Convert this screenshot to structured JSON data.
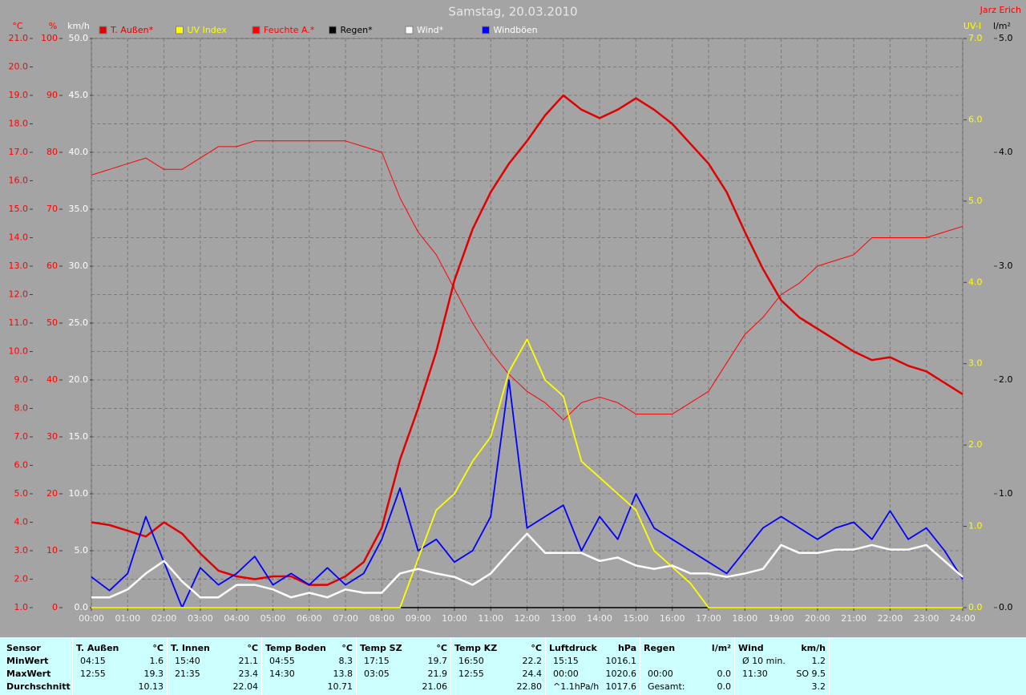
{
  "chart_data": {
    "type": "line",
    "title": "Samstag, 20.03.2010",
    "author": "Jarz Erich",
    "x": [
      0,
      0.5,
      1,
      1.5,
      2,
      2.5,
      3,
      3.5,
      4,
      4.5,
      5,
      5.5,
      6,
      6.5,
      7,
      7.5,
      8,
      8.5,
      9,
      9.5,
      10,
      10.5,
      11,
      11.5,
      12,
      12.5,
      13,
      13.5,
      14,
      14.5,
      15,
      15.5,
      16,
      16.5,
      17,
      17.5,
      18,
      18.5,
      19,
      19.5,
      20,
      20.5,
      21,
      21.5,
      22,
      22.5,
      23,
      23.5,
      24
    ],
    "xlim": [
      0,
      24
    ],
    "xticks": [
      {
        "value": 0,
        "label": "00:00"
      },
      {
        "value": 1,
        "label": "01:00"
      },
      {
        "value": 2,
        "label": "02:00"
      },
      {
        "value": 3,
        "label": "03:00"
      },
      {
        "value": 4,
        "label": "04:00"
      },
      {
        "value": 5,
        "label": "05:00"
      },
      {
        "value": 6,
        "label": "06:00"
      },
      {
        "value": 7,
        "label": "07:00"
      },
      {
        "value": 8,
        "label": "08:00"
      },
      {
        "value": 9,
        "label": "09:00"
      },
      {
        "value": 10,
        "label": "10:00"
      },
      {
        "value": 11,
        "label": "11:00"
      },
      {
        "value": 12,
        "label": "12:00"
      },
      {
        "value": 13,
        "label": "13:00"
      },
      {
        "value": 14,
        "label": "14:00"
      },
      {
        "value": 15,
        "label": "15:00"
      },
      {
        "value": 16,
        "label": "16:00"
      },
      {
        "value": 17,
        "label": "17:00"
      },
      {
        "value": 18,
        "label": "18:00"
      },
      {
        "value": 19,
        "label": "19:00"
      },
      {
        "value": 20,
        "label": "20:00"
      },
      {
        "value": 21,
        "label": "21:00"
      },
      {
        "value": 22,
        "label": "22:00"
      },
      {
        "value": 23,
        "label": "23:00"
      },
      {
        "value": 24,
        "label": "24:00"
      }
    ],
    "ylabel": "°C",
    "ycolor": "#ff0000",
    "ylim": [
      1,
      21
    ],
    "yticks": [
      {
        "value": 1,
        "label": "1.0"
      },
      {
        "value": 2,
        "label": "2.0"
      },
      {
        "value": 3,
        "label": "3.0"
      },
      {
        "value": 4,
        "label": "4.0"
      },
      {
        "value": 5,
        "label": "5.0"
      },
      {
        "value": 6,
        "label": "6.0"
      },
      {
        "value": 7,
        "label": "7.0"
      },
      {
        "value": 8,
        "label": "8.0"
      },
      {
        "value": 9,
        "label": "9.0"
      },
      {
        "value": 10,
        "label": "10.0"
      },
      {
        "value": 11,
        "label": "11.0"
      },
      {
        "value": 12,
        "label": "12.0"
      },
      {
        "value": 13,
        "label": "13.0"
      },
      {
        "value": 14,
        "label": "14.0"
      },
      {
        "value": 15,
        "label": "15.0"
      },
      {
        "value": 16,
        "label": "16.0"
      },
      {
        "value": 17,
        "label": "17.0"
      },
      {
        "value": 18,
        "label": "18.0"
      },
      {
        "value": 19,
        "label": "19.0"
      },
      {
        "value": 20,
        "label": "20.0"
      },
      {
        "value": 21,
        "label": "21.0"
      }
    ],
    "y2label": "%",
    "y2color": "#ff0000",
    "y2lim": [
      0,
      100
    ],
    "y2ticks": [
      0,
      10,
      20,
      30,
      40,
      50,
      60,
      70,
      80,
      90,
      100
    ],
    "y3label": "km/h",
    "y3color": "#ffffff",
    "y3lim": [
      0,
      50
    ],
    "y3ticks": [
      {
        "value": 0,
        "label": "0.0"
      },
      {
        "value": 5,
        "label": "5.0"
      },
      {
        "value": 10,
        "label": "10.0"
      },
      {
        "value": 15,
        "label": "15.0"
      },
      {
        "value": 20,
        "label": "20.0"
      },
      {
        "value": 25,
        "label": "25.0"
      },
      {
        "value": 30,
        "label": "30.0"
      },
      {
        "value": 35,
        "label": "35.0"
      },
      {
        "value": 40,
        "label": "40.0"
      },
      {
        "value": 45,
        "label": "45.0"
      },
      {
        "value": 50,
        "label": "50.0"
      }
    ],
    "y4label": "UV-I",
    "y4color": "#ffff00",
    "y4lim": [
      0,
      7
    ],
    "y4ticks": [
      {
        "value": 0,
        "label": "0.0"
      },
      {
        "value": 1,
        "label": "1.0"
      },
      {
        "value": 2,
        "label": "2.0"
      },
      {
        "value": 3,
        "label": "3.0"
      },
      {
        "value": 4,
        "label": "4.0"
      },
      {
        "value": 5,
        "label": "5.0"
      },
      {
        "value": 6,
        "label": "6.0"
      },
      {
        "value": 7,
        "label": "7.0"
      }
    ],
    "y5label": "l/m²",
    "y5color": "#000000",
    "y5lim": [
      0,
      5
    ],
    "y5ticks": [
      {
        "value": 0,
        "label": "0.0"
      },
      {
        "value": 1,
        "label": "1.0"
      },
      {
        "value": 2,
        "label": "2.0"
      },
      {
        "value": 3,
        "label": "3.0"
      },
      {
        "value": 4,
        "label": "4.0"
      },
      {
        "value": 5,
        "label": "5.0"
      }
    ],
    "grid": true,
    "series": [
      {
        "name": "T. Außen*",
        "color": "#e00000",
        "axis": "y",
        "values": [
          4.0,
          3.9,
          3.7,
          3.5,
          4.0,
          3.6,
          2.9,
          2.3,
          2.1,
          2.0,
          2.1,
          2.1,
          1.8,
          1.8,
          2.1,
          2.6,
          3.8,
          6.2,
          8.0,
          10.0,
          12.5,
          14.3,
          15.6,
          16.6,
          17.4,
          18.3,
          19.0,
          18.5,
          18.2,
          18.5,
          18.9,
          18.5,
          18.0,
          17.3,
          16.6,
          15.6,
          14.2,
          12.9,
          11.8,
          11.2,
          10.8,
          10.4,
          10.0,
          9.7,
          9.8,
          9.5,
          9.3,
          8.9,
          8.5
        ]
      },
      {
        "name": "UV Index",
        "color": "#ffff00",
        "axis": "y4",
        "values": [
          0,
          0,
          0,
          0,
          0,
          0,
          0,
          0,
          0,
          0,
          0,
          0,
          0,
          0,
          0,
          0,
          0,
          0,
          0.6,
          1.2,
          1.4,
          1.8,
          2.1,
          2.9,
          3.3,
          2.8,
          2.6,
          1.8,
          1.6,
          1.4,
          1.2,
          0.7,
          0.5,
          0.3,
          0,
          0,
          0,
          0,
          0,
          0,
          0,
          0,
          0,
          0,
          0,
          0,
          0,
          0,
          0
        ]
      },
      {
        "name": "Feuchte A.*",
        "color": "#ff0000",
        "axis": "y2",
        "values": [
          76,
          77,
          78,
          79,
          77,
          77,
          79,
          81,
          81,
          82,
          82,
          82,
          82,
          82,
          82,
          81,
          80,
          72,
          66,
          62,
          56,
          50,
          45,
          41,
          38,
          36,
          33,
          36,
          37,
          36,
          34,
          34,
          34,
          36,
          38,
          43,
          48,
          51,
          55,
          57,
          60,
          61,
          62,
          65,
          65,
          65,
          65,
          66,
          67
        ]
      },
      {
        "name": "Regen*",
        "color": "#000000",
        "axis": "y5",
        "values": [
          0,
          0,
          0,
          0,
          0,
          0,
          0,
          0,
          0,
          0,
          0,
          0,
          0,
          0,
          0,
          0,
          0,
          0,
          0,
          0,
          0,
          0,
          0,
          0,
          0,
          0,
          0,
          0,
          0,
          0,
          0,
          0,
          0,
          0,
          0,
          0,
          0,
          0,
          0,
          0,
          0,
          0,
          0,
          0,
          0,
          0,
          0,
          0,
          0
        ]
      },
      {
        "name": "Wind*",
        "color": "#ffffff",
        "axis": "y3",
        "values": [
          0.9,
          0.9,
          1.6,
          3.0,
          4.1,
          2.3,
          0.9,
          0.9,
          2.0,
          2.0,
          1.6,
          0.9,
          1.3,
          0.9,
          1.6,
          1.3,
          1.3,
          3.0,
          3.4,
          3.0,
          2.7,
          2.0,
          3.0,
          4.8,
          6.5,
          4.8,
          4.8,
          4.8,
          4.1,
          4.4,
          3.7,
          3.4,
          3.7,
          3.0,
          3.0,
          2.7,
          3.0,
          3.4,
          5.5,
          4.8,
          4.8,
          5.1,
          5.1,
          5.5,
          5.1,
          5.1,
          5.5,
          4.1,
          2.7
        ]
      },
      {
        "name": "Windböen",
        "color": "#0000ff",
        "label_color": "#ffffff",
        "axis": "y3",
        "values": [
          2.7,
          1.5,
          3.0,
          8.0,
          4.0,
          0.0,
          3.5,
          2.0,
          3.0,
          4.5,
          2.0,
          3.0,
          2.0,
          3.5,
          2.0,
          3.0,
          6.0,
          10.5,
          5.0,
          6.0,
          4.0,
          5.0,
          8.0,
          20.0,
          7.0,
          8.0,
          9.0,
          5.0,
          8.0,
          6.0,
          10.0,
          7.0,
          6.0,
          5.0,
          4.0,
          3.0,
          5.0,
          7.0,
          8.0,
          7.0,
          6.0,
          7.0,
          7.5,
          6.0,
          8.5,
          6.0,
          7.0,
          5.0,
          2.5
        ]
      }
    ]
  },
  "table": {
    "row_labels": [
      "Sensor",
      "MinWert",
      "MaxWert",
      "Durchschnitt"
    ],
    "columns": [
      {
        "name": "T. Außen",
        "unit": "°C",
        "rows": [
          {
            "time": "04:15",
            "value": "1.6"
          },
          {
            "time": "12:55",
            "value": "19.3"
          },
          {
            "value": "10.13"
          }
        ]
      },
      {
        "name": "T. Innen",
        "unit": "°C",
        "rows": [
          {
            "time": "15:40",
            "value": "21.1"
          },
          {
            "time": "21:35",
            "value": "23.4"
          },
          {
            "value": "22.04"
          }
        ]
      },
      {
        "name": "Temp Boden",
        "unit": "°C",
        "rows": [
          {
            "time": "04:55",
            "value": "8.3"
          },
          {
            "time": "14:30",
            "value": "13.8"
          },
          {
            "value": "10.71"
          }
        ]
      },
      {
        "name": "Temp SZ",
        "unit": "°C",
        "rows": [
          {
            "time": "17:15",
            "value": "19.7"
          },
          {
            "time": "03:05",
            "value": "21.9"
          },
          {
            "value": "21.06"
          }
        ]
      },
      {
        "name": "Temp KZ",
        "unit": "°C",
        "rows": [
          {
            "time": "16:50",
            "value": "22.2"
          },
          {
            "time": "12:55",
            "value": "24.4"
          },
          {
            "value": "22.80"
          }
        ]
      },
      {
        "name": "Luftdruck",
        "unit": "hPa",
        "rows": [
          {
            "time": "15:15",
            "value": "1016.1"
          },
          {
            "time": "00:00",
            "value": "1020.6"
          },
          {
            "time": "^1.1hPa/h",
            "value": "1017.6"
          }
        ]
      },
      {
        "name": "Regen",
        "unit": "l/m²",
        "rows": [
          {},
          {
            "time": "00:00",
            "value": "0.0"
          },
          {
            "time": "Gesamt:",
            "value": "0.0"
          }
        ]
      },
      {
        "name": "Wind",
        "unit": "km/h",
        "rows": [
          {
            "time": "Ø 10 min.",
            "value": "1.2"
          },
          {
            "time": "11:30",
            "value": "SO 9.5"
          },
          {
            "value": "3.2"
          }
        ]
      }
    ]
  }
}
